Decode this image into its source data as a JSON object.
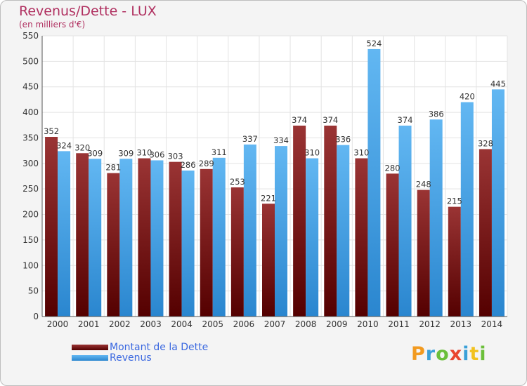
{
  "chart_data": {
    "type": "bar",
    "title": "Revenus/Dette - LUX",
    "subtitle": "(en milliers d'€)",
    "categories": [
      "2000",
      "2001",
      "2002",
      "2003",
      "2004",
      "2005",
      "2006",
      "2007",
      "2008",
      "2009",
      "2010",
      "2011",
      "2012",
      "2013",
      "2014"
    ],
    "series": [
      {
        "name": "Montant de la Dette",
        "color": "#7a1b1b",
        "values": [
          352,
          320,
          281,
          310,
          303,
          289,
          253,
          221,
          374,
          374,
          310,
          280,
          248,
          215,
          328
        ]
      },
      {
        "name": "Revenus",
        "color": "#4aa3e6",
        "values": [
          324,
          309,
          309,
          306,
          286,
          311,
          337,
          334,
          310,
          336,
          524,
          374,
          386,
          420,
          445
        ]
      }
    ],
    "yticks": [
      0,
      50,
      100,
      150,
      200,
      250,
      300,
      350,
      400,
      450,
      500,
      550
    ],
    "ylim": [
      0,
      550
    ],
    "grid": true,
    "legend": "bottom-left"
  },
  "logo_text": "Proxiti"
}
